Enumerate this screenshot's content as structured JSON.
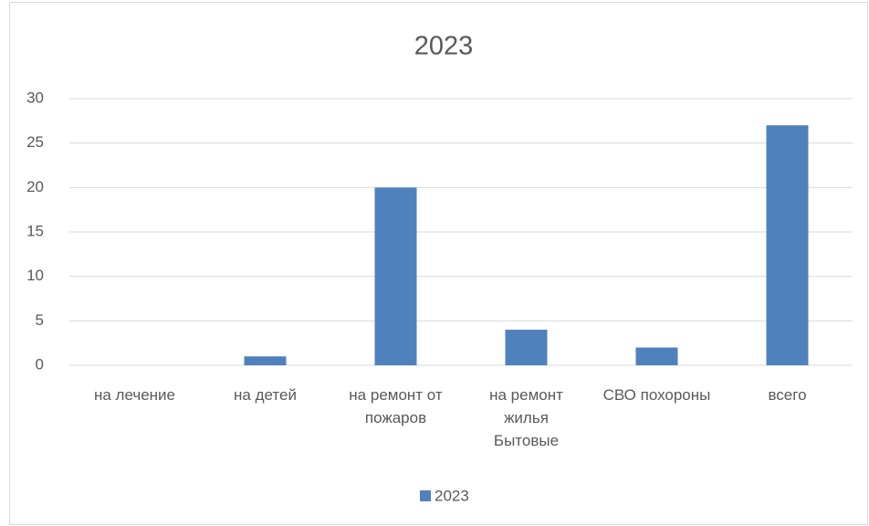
{
  "chart_data": {
    "type": "bar",
    "title": "2023",
    "categories": [
      "на лечение",
      "на детей",
      "на ремонт от пожаров",
      "на ремонт жилья Бытовые",
      "СВО похороны",
      "всего"
    ],
    "series": [
      {
        "name": "2023",
        "color": "#4f81bd",
        "values": [
          0,
          1,
          20,
          4,
          2,
          27
        ]
      }
    ],
    "ylim": [
      0,
      30
    ],
    "yticks": [
      0,
      5,
      10,
      15,
      20,
      25,
      30
    ],
    "grid": true,
    "legend": "bottom"
  }
}
